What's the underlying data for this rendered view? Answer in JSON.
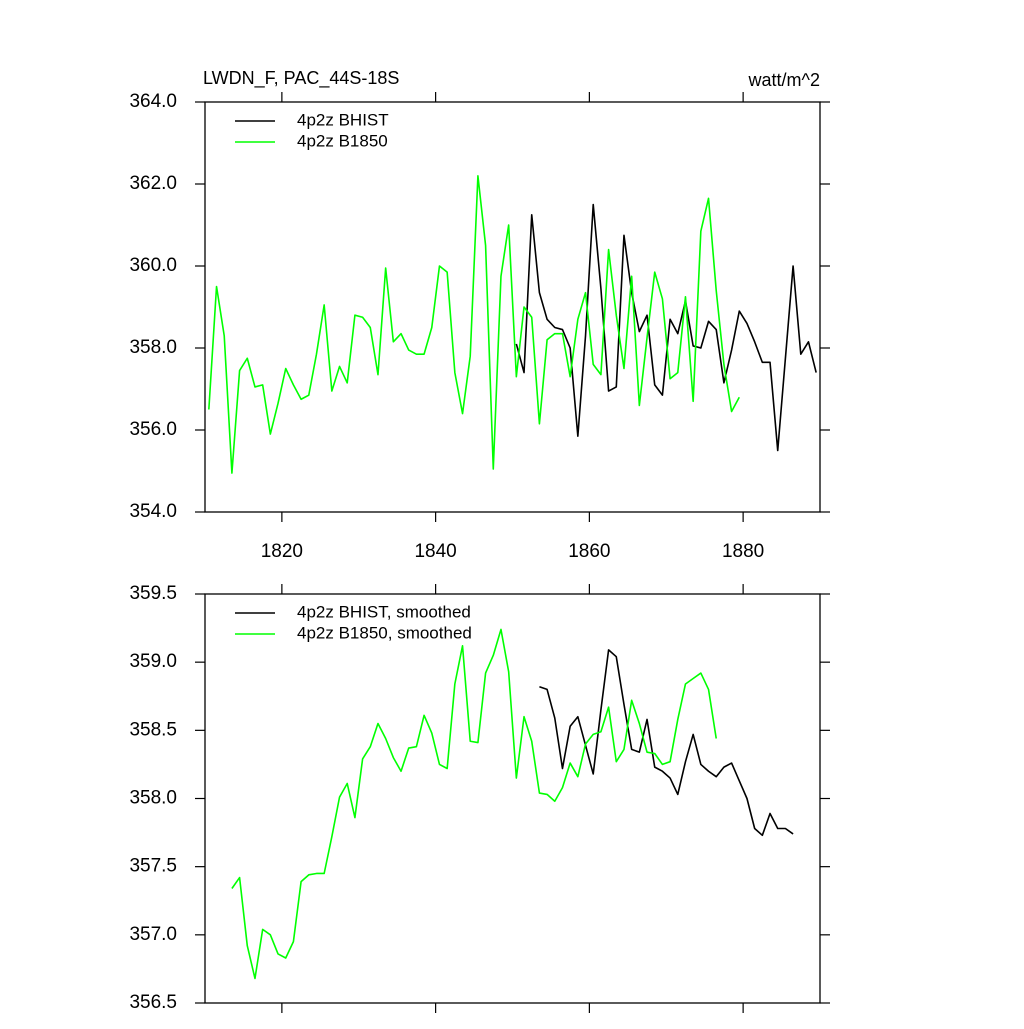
{
  "chart_data": [
    {
      "type": "line",
      "title": "LWDN_F, PAC_44S-18S",
      "units_label": "watt/m^2",
      "xlim": [
        1810,
        1890
      ],
      "xticks": [
        1820,
        1840,
        1860,
        1880
      ],
      "ylim": [
        354,
        364
      ],
      "yticks": [
        {
          "value": 354,
          "label": "354.0"
        },
        {
          "value": 356,
          "label": "356.0"
        },
        {
          "value": 358,
          "label": "358.0"
        },
        {
          "value": 360,
          "label": "360.0"
        },
        {
          "value": 362,
          "label": "362.0"
        },
        {
          "value": 364,
          "label": "364.0"
        }
      ],
      "legend": "upper left",
      "series": [
        {
          "name": "4p2z BHIST",
          "color": "#000000",
          "x": [
            1850.5,
            1851.5,
            1852.5,
            1853.5,
            1854.5,
            1855.5,
            1856.5,
            1857.5,
            1858.5,
            1859.5,
            1860.5,
            1861.5,
            1862.5,
            1863.5,
            1864.5,
            1865.5,
            1866.5,
            1867.5,
            1868.5,
            1869.5,
            1870.5,
            1871.5,
            1872.5,
            1873.5,
            1874.5,
            1875.5,
            1876.5,
            1877.5,
            1878.5,
            1879.5,
            1880.5,
            1881.5,
            1882.5,
            1883.5,
            1884.5,
            1885.5,
            1886.5,
            1887.5,
            1888.5,
            1889.5
          ],
          "values": [
            358.1,
            357.4,
            361.25,
            359.35,
            358.7,
            358.5,
            358.45,
            358.0,
            355.85,
            358.3,
            361.5,
            359.45,
            356.95,
            357.05,
            360.75,
            359.35,
            358.4,
            358.8,
            357.1,
            356.85,
            358.7,
            358.35,
            359.15,
            358.05,
            358.0,
            358.65,
            358.45,
            357.15,
            357.95,
            358.9,
            358.6,
            358.15,
            357.65,
            357.65,
            355.5,
            357.75,
            360.0,
            357.85,
            358.15,
            357.4
          ]
        },
        {
          "name": "4p2z B1850",
          "color": "#00ff00",
          "x": [
            1810.5,
            1811.5,
            1812.5,
            1813.5,
            1814.5,
            1815.5,
            1816.5,
            1817.5,
            1818.5,
            1819.5,
            1820.5,
            1821.5,
            1822.5,
            1823.5,
            1824.5,
            1825.5,
            1826.5,
            1827.5,
            1828.5,
            1829.5,
            1830.5,
            1831.5,
            1832.5,
            1833.5,
            1834.5,
            1835.5,
            1836.5,
            1837.5,
            1838.5,
            1839.5,
            1840.5,
            1841.5,
            1842.5,
            1843.5,
            1844.5,
            1845.5,
            1846.5,
            1847.5,
            1848.5,
            1849.5,
            1850.5,
            1851.5,
            1852.5,
            1853.5,
            1854.5,
            1855.5,
            1856.5,
            1857.5,
            1858.5,
            1859.5,
            1860.5,
            1861.5,
            1862.5,
            1863.5,
            1864.5,
            1865.5,
            1866.5,
            1867.5,
            1868.5,
            1869.5,
            1870.5,
            1871.5,
            1872.5,
            1873.5,
            1874.5,
            1875.5,
            1876.5,
            1877.5,
            1878.5,
            1879.5
          ],
          "values": [
            356.5,
            359.5,
            358.3,
            354.95,
            357.45,
            357.75,
            357.05,
            357.1,
            355.9,
            356.65,
            357.5,
            357.1,
            356.75,
            356.85,
            357.85,
            359.05,
            356.95,
            357.55,
            357.15,
            358.8,
            358.75,
            358.5,
            357.35,
            359.95,
            358.15,
            358.35,
            357.95,
            357.85,
            357.85,
            358.5,
            360.0,
            359.85,
            357.4,
            356.4,
            357.8,
            362.2,
            360.5,
            355.05,
            359.75,
            361.0,
            357.3,
            359.0,
            358.75,
            356.15,
            358.2,
            358.35,
            358.35,
            357.3,
            358.7,
            359.35,
            357.6,
            357.35,
            360.4,
            358.8,
            357.5,
            359.75,
            356.6,
            358.25,
            359.85,
            359.2,
            357.25,
            357.4,
            359.25,
            356.7,
            360.85,
            361.65,
            359.4,
            357.6,
            356.45,
            356.8
          ]
        }
      ]
    },
    {
      "type": "line",
      "xlim": [
        1810,
        1890
      ],
      "xticks": [
        1820,
        1840,
        1860,
        1880
      ],
      "ylim": [
        356.5,
        359.5
      ],
      "yticks": [
        356.5,
        {
          "value": 357,
          "label": "357.0"
        },
        357.5,
        {
          "value": 358,
          "label": "358.0"
        },
        358.5,
        {
          "value": 359,
          "label": "359.0"
        },
        359.5
      ],
      "legend": "upper left",
      "series": [
        {
          "name": "4p2z BHIST, smoothed",
          "color": "#000000",
          "x": [
            1853.5,
            1854.5,
            1855.5,
            1856.5,
            1857.5,
            1858.5,
            1859.5,
            1860.5,
            1861.5,
            1862.5,
            1863.5,
            1864.5,
            1865.5,
            1866.5,
            1867.5,
            1868.5,
            1869.5,
            1870.5,
            1871.5,
            1872.5,
            1873.5,
            1874.5,
            1875.5,
            1876.5,
            1877.5,
            1878.5,
            1879.5,
            1880.5,
            1881.5,
            1882.5,
            1883.5,
            1884.5,
            1885.5,
            1886.5
          ],
          "values": [
            358.82,
            358.8,
            358.59,
            358.22,
            358.53,
            358.6,
            358.39,
            358.18,
            358.65,
            359.09,
            359.04,
            358.69,
            358.36,
            358.34,
            358.58,
            358.23,
            358.2,
            358.15,
            358.03,
            358.27,
            358.47,
            358.25,
            358.2,
            358.16,
            358.23,
            358.26,
            358.13,
            358.0,
            357.78,
            357.73,
            357.89,
            357.78,
            357.78,
            357.74
          ]
        },
        {
          "name": "4p2z B1850, smoothed",
          "color": "#00ff00",
          "x": [
            1813.5,
            1814.5,
            1815.5,
            1816.5,
            1817.5,
            1818.5,
            1819.5,
            1820.5,
            1821.5,
            1822.5,
            1823.5,
            1824.5,
            1825.5,
            1826.5,
            1827.5,
            1828.5,
            1829.5,
            1830.5,
            1831.5,
            1832.5,
            1833.5,
            1834.5,
            1835.5,
            1836.5,
            1837.5,
            1838.5,
            1839.5,
            1840.5,
            1841.5,
            1842.5,
            1843.5,
            1844.5,
            1845.5,
            1846.5,
            1847.5,
            1848.5,
            1849.5,
            1850.5,
            1851.5,
            1852.5,
            1853.5,
            1854.5,
            1855.5,
            1856.5,
            1857.5,
            1858.5,
            1859.5,
            1860.5,
            1861.5,
            1862.5,
            1863.5,
            1864.5,
            1865.5,
            1866.5,
            1867.5,
            1868.5,
            1869.5,
            1870.5,
            1871.5,
            1872.5,
            1873.5,
            1874.5,
            1875.5,
            1876.5
          ],
          "values": [
            357.34,
            357.42,
            356.92,
            356.68,
            357.04,
            357.0,
            356.86,
            356.83,
            356.95,
            357.39,
            357.44,
            357.45,
            357.45,
            357.72,
            358.01,
            358.11,
            357.86,
            358.29,
            358.38,
            358.55,
            358.44,
            358.3,
            358.2,
            358.37,
            358.38,
            358.61,
            358.48,
            358.25,
            358.22,
            358.84,
            359.12,
            358.42,
            358.41,
            358.92,
            359.05,
            359.24,
            358.93,
            358.15,
            358.6,
            358.42,
            358.04,
            358.03,
            357.98,
            358.08,
            358.26,
            358.16,
            358.4,
            358.47,
            358.49,
            358.67,
            358.27,
            358.36,
            358.72,
            358.55,
            358.34,
            358.33,
            358.25,
            358.27,
            358.58,
            358.84,
            358.88,
            358.92,
            358.8,
            358.44
          ]
        }
      ]
    }
  ]
}
